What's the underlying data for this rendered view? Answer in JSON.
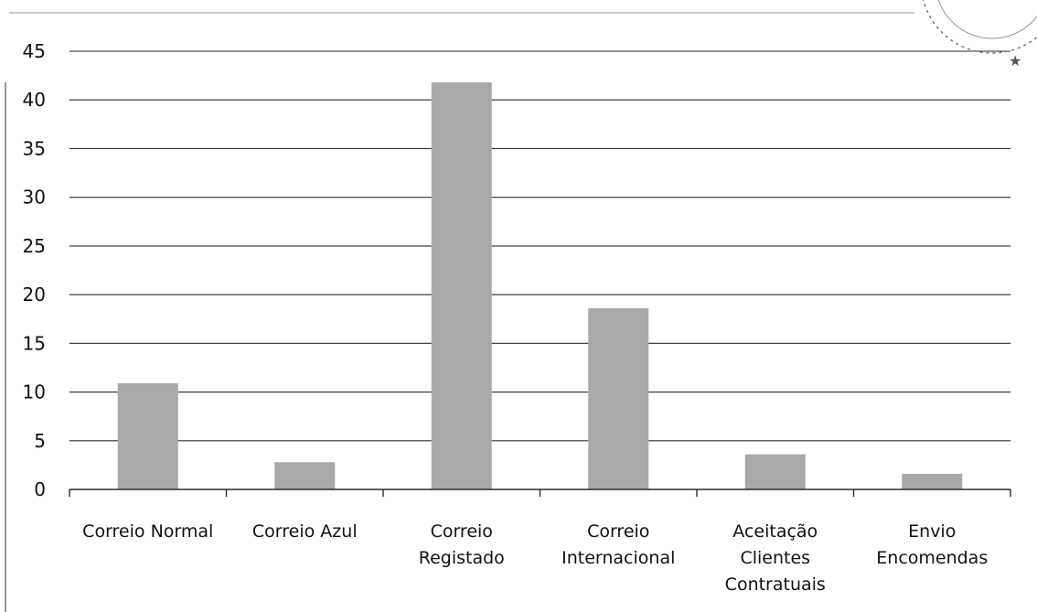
{
  "chart_data": {
    "type": "bar",
    "title": "",
    "xlabel": "",
    "ylabel": "",
    "categories": [
      [
        "Correio Normal"
      ],
      [
        "Correio Azul"
      ],
      [
        "Correio",
        "Registado"
      ],
      [
        "Correio",
        "Internacional"
      ],
      [
        "Aceitação",
        "Clientes",
        "Contratuais"
      ],
      [
        "Envio",
        "Encomendas"
      ]
    ],
    "values": [
      10.9,
      2.8,
      41.8,
      18.6,
      3.6,
      1.6
    ],
    "ylim": [
      0,
      45
    ],
    "yticks": [
      0,
      5,
      10,
      15,
      20,
      25,
      30,
      35,
      40,
      45
    ],
    "grid": true,
    "legend": "none",
    "bar_color": "#a9a9a9"
  }
}
